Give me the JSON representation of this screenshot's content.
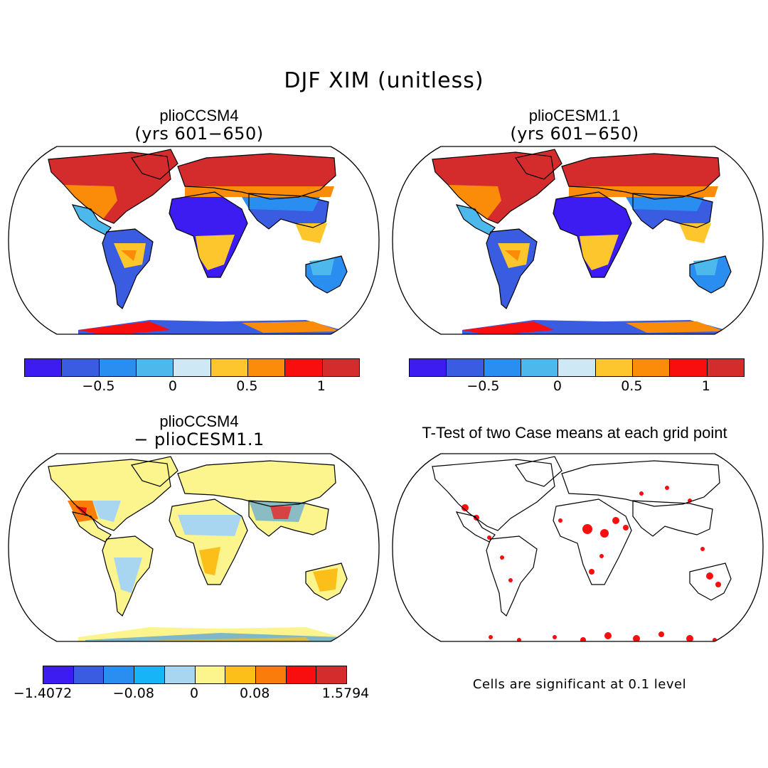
{
  "main_title": "DJF XIM (unitless)",
  "panels": {
    "top_left": {
      "title": "plioCCSM4",
      "subtitle": "(yrs 601−650)"
    },
    "top_right": {
      "title": "plioCESM1.1",
      "subtitle": "(yrs 601−650)"
    },
    "bottom_left": {
      "title": "plioCCSM4",
      "subtitle": "− plioCESM1.1"
    },
    "bottom_right": {
      "title": "T-Test of two Case means at each grid point",
      "note": "Cells are significant at 0.1 level"
    }
  },
  "colorbars": {
    "main": {
      "colors": [
        "#3c1cf0",
        "#3a5ce0",
        "#2a8ef0",
        "#4cb8ec",
        "#cfe8f6",
        "#fcc62c",
        "#fa8c0a",
        "#f80e0e",
        "#d42c2c"
      ],
      "ticks": [
        "−0.5",
        "0",
        "0.5",
        "1"
      ],
      "tick_values": [
        -0.5,
        0,
        0.5,
        1
      ]
    },
    "diff": {
      "colors": [
        "#3c1cf0",
        "#3a5ce0",
        "#2a8ef0",
        "#18b4f8",
        "#a8d6f0",
        "#fcf48c",
        "#fcbe18",
        "#fa7c0a",
        "#f80e0e",
        "#d42c2c"
      ],
      "ticks": [
        "−1.4072",
        "−0.08",
        "0",
        "0.08",
        "1.5794"
      ]
    }
  },
  "chart_data": {
    "type": "heatmap",
    "title": "DJF XIM (unitless)",
    "maps": [
      {
        "title": "plioCCSM4 (yrs 601−650)",
        "colorbar_levels": [
          -0.5,
          0,
          0.5,
          1
        ]
      },
      {
        "title": "plioCESM1.1 (yrs 601−650)",
        "colorbar_levels": [
          -0.5,
          0,
          0.5,
          1
        ]
      },
      {
        "title": "plioCCSM4 − plioCESM1.1",
        "colorbar_levels": [
          -1.4072,
          -0.08,
          0,
          0.08,
          1.5794
        ]
      },
      {
        "title": "T-Test of two Case means at each grid point",
        "note": "Cells are significant at 0.1 level"
      }
    ]
  }
}
